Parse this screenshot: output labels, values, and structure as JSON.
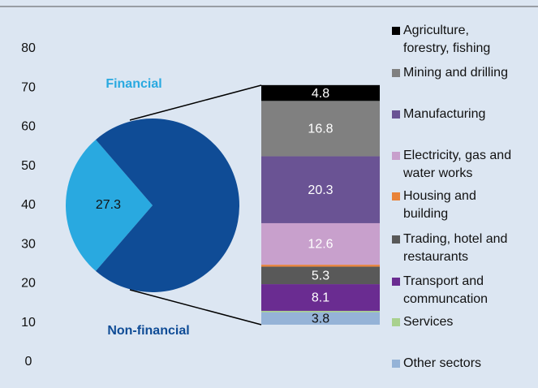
{
  "chart_data": [
    {
      "type": "pie",
      "categories": [
        "Financial",
        "Non-financial"
      ],
      "values": [
        27.3,
        72.7
      ],
      "value_labels": [
        "27.3",
        null
      ],
      "colors": [
        "#29a9e0",
        "#0f4c96"
      ]
    },
    {
      "type": "stacked-bar",
      "ylim": [
        0,
        80
      ],
      "yticks": [
        0,
        10,
        20,
        30,
        40,
        50,
        60,
        70,
        80
      ],
      "series": [
        {
          "name": "Agriculture,\nforestry, fishing",
          "color": "#000000",
          "values": [
            4.8
          ],
          "value_labels": [
            "4.8"
          ]
        },
        {
          "name": "Mining and drilling",
          "color": "#808080",
          "values": [
            16.8
          ],
          "value_labels": [
            "16.8"
          ]
        },
        {
          "name": "Manufacturing",
          "color": "#6a5394",
          "values": [
            20.3
          ],
          "value_labels": [
            "20.3"
          ]
        },
        {
          "name": "Electricity, gas and\nwater works",
          "color": "#c8a0cc",
          "values": [
            12.6
          ],
          "value_labels": [
            "12.6"
          ]
        },
        {
          "name": "Housing and\nbuilding",
          "color": "#e8833a",
          "values": [
            0.6
          ],
          "value_labels": [
            null
          ]
        },
        {
          "name": "Trading, hotel and\nrestaurants",
          "color": "#595959",
          "values": [
            5.3
          ],
          "value_labels": [
            "5.3"
          ]
        },
        {
          "name": "Transport and\ncommuncation",
          "color": "#6a2c91",
          "values": [
            8.1
          ],
          "value_labels": [
            "8.1"
          ]
        },
        {
          "name": "Services",
          "color": "#a9d18e",
          "values": [
            0.4
          ],
          "value_labels": [
            null
          ]
        },
        {
          "name": "Other sectors",
          "color": "#95b3d7",
          "values": [
            3.8
          ],
          "value_labels": [
            "3.8"
          ]
        }
      ]
    }
  ]
}
